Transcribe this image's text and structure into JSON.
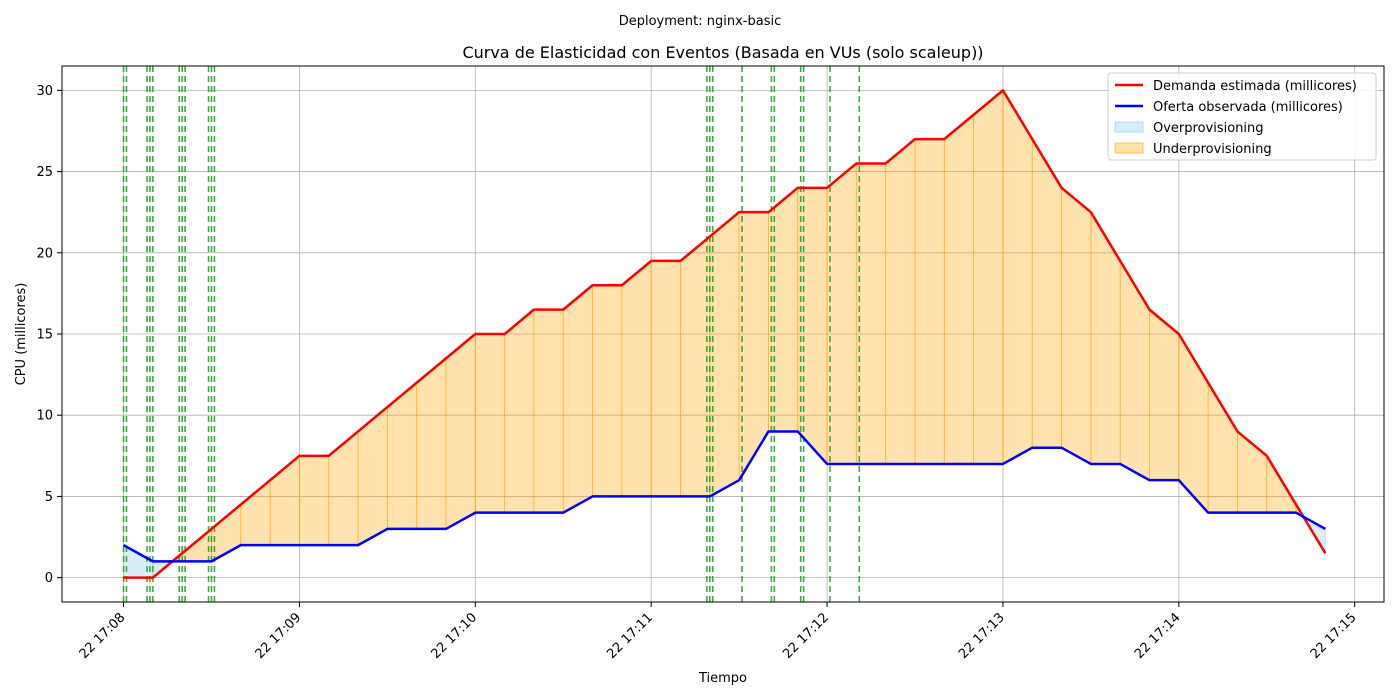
{
  "suptitle": "Deployment: nginx-basic",
  "chart_data": {
    "type": "line",
    "title": "Curva de Elasticidad con Eventos (Basada en VUs (solo scaleup))",
    "xlabel": "Tiempo",
    "ylabel": "CPU (millicores)",
    "xlim": [
      "22 17:07:39",
      "22 17:15:10"
    ],
    "ylim": [
      -1.5,
      31.5
    ],
    "yticks": [
      0,
      5,
      10,
      15,
      20,
      25,
      30
    ],
    "xticks": [
      {
        "t": "22 17:08:00",
        "label": "22 17:08"
      },
      {
        "t": "22 17:09:00",
        "label": "22 17:09"
      },
      {
        "t": "22 17:10:00",
        "label": "22 17:10"
      },
      {
        "t": "22 17:11:00",
        "label": "22 17:11"
      },
      {
        "t": "22 17:12:00",
        "label": "22 17:12"
      },
      {
        "t": "22 17:13:00",
        "label": "22 17:13"
      },
      {
        "t": "22 17:14:00",
        "label": "22 17:14"
      },
      {
        "t": "22 17:15:00",
        "label": "22 17:15"
      }
    ],
    "grid": true,
    "legend_position": "top-right",
    "x": [
      "22 17:08:00",
      "22 17:08:10",
      "22 17:08:20",
      "22 17:08:30",
      "22 17:08:40",
      "22 17:08:50",
      "22 17:09:00",
      "22 17:09:10",
      "22 17:09:20",
      "22 17:09:30",
      "22 17:09:40",
      "22 17:09:50",
      "22 17:10:00",
      "22 17:10:10",
      "22 17:10:20",
      "22 17:10:30",
      "22 17:10:40",
      "22 17:10:50",
      "22 17:11:00",
      "22 17:11:10",
      "22 17:11:20",
      "22 17:11:30",
      "22 17:11:40",
      "22 17:11:50",
      "22 17:12:00",
      "22 17:12:10",
      "22 17:12:20",
      "22 17:12:30",
      "22 17:12:40",
      "22 17:12:50",
      "22 17:13:00",
      "22 17:13:10",
      "22 17:13:20",
      "22 17:13:30",
      "22 17:13:40",
      "22 17:13:50",
      "22 17:14:00",
      "22 17:14:10",
      "22 17:14:20",
      "22 17:14:30",
      "22 17:14:40",
      "22 17:14:50"
    ],
    "series": [
      {
        "name": "Demanda estimada (millicores)",
        "color": "#ff0000",
        "values": [
          0,
          0,
          1.5,
          3,
          4.5,
          6,
          7.5,
          7.5,
          9,
          10.5,
          12,
          13.5,
          15,
          15,
          16.5,
          16.5,
          18,
          18,
          19.5,
          19.5,
          21,
          22.5,
          22.5,
          24,
          24,
          25.5,
          25.5,
          27,
          27,
          28.5,
          30,
          27,
          24,
          22.5,
          19.5,
          16.5,
          15,
          12,
          9,
          7.5,
          4.5,
          1.5
        ]
      },
      {
        "name": "Oferta observada (millicores)",
        "color": "#0000ff",
        "values": [
          2,
          1,
          1,
          1,
          2,
          2,
          2,
          2,
          2,
          3,
          3,
          3,
          4,
          4,
          4,
          4,
          5,
          5,
          5,
          5,
          5,
          6,
          9,
          9,
          7,
          7,
          7,
          7,
          7,
          7,
          7,
          8,
          8,
          7,
          7,
          6,
          6,
          4,
          4,
          4,
          4,
          3
        ]
      }
    ],
    "fill_legend": [
      {
        "name": "Overprovisioning",
        "color": "#87ceeb"
      },
      {
        "name": "Underprovisioning",
        "color": "#ffa500"
      }
    ],
    "event_color": "#2ca02c",
    "events": [
      "22 17:08:00",
      "22 17:08:01",
      "22 17:08:08",
      "22 17:08:09",
      "22 17:08:10",
      "22 17:08:19",
      "22 17:08:20",
      "22 17:08:21",
      "22 17:08:29",
      "22 17:08:30",
      "22 17:08:31",
      "22 17:11:19",
      "22 17:11:20",
      "22 17:11:21",
      "22 17:11:31",
      "22 17:11:41",
      "22 17:11:42",
      "22 17:11:51",
      "22 17:11:52",
      "22 17:12:01",
      "22 17:12:11"
    ]
  }
}
